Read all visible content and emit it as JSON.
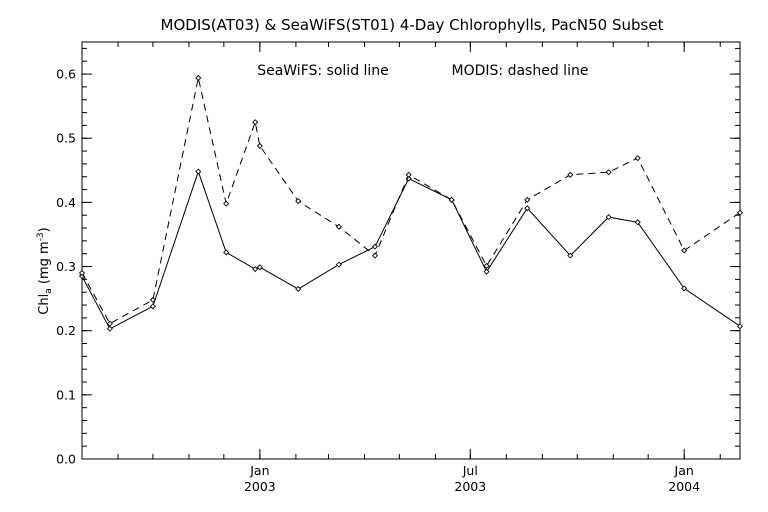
{
  "chart_data": {
    "type": "line",
    "title": "MODIS(AT03) & SeaWiFS(ST01) 4-Day Chlorophylls, PacN50 Subset",
    "legend_note_solid": "SeaWiFS: solid line",
    "legend_note_dashed": "MODIS: dashed line",
    "ylabel": {
      "base": "Chl",
      "sub": "a",
      "units_prefix": " (mg m",
      "sup": "-3",
      "units_suffix": ")"
    },
    "xlabel": "",
    "ylim": [
      0.0,
      0.65
    ],
    "yticks": [
      "0.0",
      "0.1",
      "0.2",
      "0.3",
      "0.4",
      "0.5",
      "0.6"
    ],
    "xlim": [
      "2002-08-01",
      "2004-02-18"
    ],
    "xticks": [
      {
        "date": "2003-01-01",
        "label": "Jan",
        "year": "2003"
      },
      {
        "date": "2003-07-01",
        "label": "Jul",
        "year": "2003"
      },
      {
        "date": "2004-01-01",
        "label": "Jan",
        "year": "2004"
      }
    ],
    "series": [
      {
        "name": "SeaWiFS",
        "style": "solid",
        "points": [
          [
            "2002-08-01",
            0.285
          ],
          [
            "2002-08-25",
            0.203
          ],
          [
            "2002-10-01",
            0.238
          ],
          [
            "2002-11-09",
            0.448
          ],
          [
            "2002-12-03",
            0.322
          ],
          [
            "2002-12-28",
            0.296
          ],
          [
            "2003-01-01",
            0.299
          ],
          [
            "2003-02-03",
            0.265
          ],
          [
            "2003-03-10",
            0.303
          ],
          [
            "2003-04-10",
            0.331
          ],
          [
            "2003-05-09",
            0.437
          ],
          [
            "2003-06-15",
            0.404
          ],
          [
            "2003-07-15",
            0.292
          ],
          [
            "2003-08-19",
            0.391
          ],
          [
            "2003-09-25",
            0.317
          ],
          [
            "2003-10-28",
            0.377
          ],
          [
            "2003-11-22",
            0.369
          ],
          [
            "2004-01-01",
            0.266
          ],
          [
            "2004-02-18",
            0.207
          ]
        ]
      },
      {
        "name": "MODIS",
        "style": "dashed",
        "points": [
          [
            "2002-08-01",
            0.29
          ],
          [
            "2002-08-25",
            0.211
          ],
          [
            "2002-10-01",
            0.248
          ],
          [
            "2002-11-09",
            0.594
          ],
          [
            "2002-12-03",
            0.398
          ],
          [
            "2002-12-28",
            0.525
          ],
          [
            "2003-01-01",
            0.488
          ],
          [
            "2003-02-03",
            0.402
          ],
          [
            "2003-03-10",
            0.362
          ],
          [
            "2003-04-10",
            0.317
          ],
          [
            "2003-05-09",
            0.443
          ],
          [
            "2003-06-15",
            0.404
          ],
          [
            "2003-07-15",
            0.301
          ],
          [
            "2003-08-19",
            0.404
          ],
          [
            "2003-09-25",
            0.443
          ],
          [
            "2003-10-28",
            0.447
          ],
          [
            "2003-11-22",
            0.469
          ],
          [
            "2004-01-01",
            0.325
          ],
          [
            "2004-02-18",
            0.384
          ]
        ]
      }
    ],
    "grid": false,
    "legend": "top-center text"
  }
}
